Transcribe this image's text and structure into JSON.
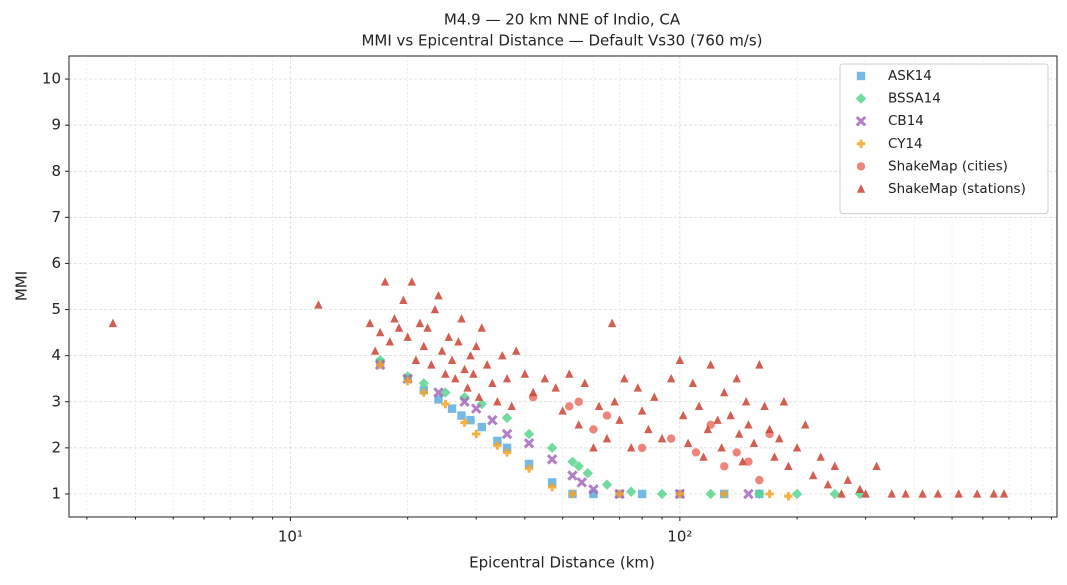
{
  "chart_data": {
    "type": "scatter",
    "title": "M4.9 — 20 km NNE of Indio, CA",
    "subtitle": "MMI vs Epicentral Distance — Default Vs30 (760 m/s)",
    "x_label": "Epicentral Distance (km)",
    "y_label": "MMI",
    "x_scale": "log",
    "xlim": [
      2.7,
      930
    ],
    "ylim": [
      0.5,
      10.5
    ],
    "xticks": [
      {
        "value": 10,
        "label": "10¹"
      },
      {
        "value": 100,
        "label": "10²"
      }
    ],
    "xminorticks": [
      3,
      4,
      5,
      6,
      7,
      8,
      9,
      20,
      30,
      40,
      50,
      60,
      70,
      80,
      90,
      200,
      300,
      400,
      500,
      600,
      700,
      800,
      900
    ],
    "yticks": [
      1,
      2,
      3,
      4,
      5,
      6,
      7,
      8,
      9,
      10
    ],
    "grid": true,
    "legend": "upper right",
    "series": [
      {
        "name": "ASK14",
        "color": "#5dade2",
        "marker": "square",
        "x": [
          17,
          20,
          22,
          24,
          26,
          27.5,
          29,
          31,
          34,
          36,
          41,
          47,
          53,
          60,
          70,
          80,
          100,
          130,
          160
        ],
        "values": [
          3.85,
          3.5,
          3.25,
          3.05,
          2.85,
          2.7,
          2.6,
          2.45,
          2.15,
          2.0,
          1.65,
          1.25,
          1.0,
          1.0,
          1.0,
          1.0,
          1.0,
          1.0,
          1.0
        ]
      },
      {
        "name": "BSSA14",
        "color": "#58d68d",
        "marker": "diamond",
        "x": [
          17,
          20,
          22,
          25,
          28,
          31,
          36,
          41,
          47,
          53,
          55,
          58,
          65,
          75,
          90,
          120,
          160,
          200,
          250,
          290
        ],
        "values": [
          3.9,
          3.55,
          3.4,
          3.2,
          3.1,
          2.95,
          2.65,
          2.3,
          2.0,
          1.7,
          1.6,
          1.45,
          1.2,
          1.05,
          1.0,
          1.0,
          1.0,
          1.0,
          1.0,
          1.0
        ]
      },
      {
        "name": "CB14",
        "color": "#a569bd",
        "marker": "x",
        "x": [
          17,
          20,
          24,
          28,
          30,
          33,
          36,
          41,
          47,
          53,
          56,
          60,
          70,
          100,
          150
        ],
        "values": [
          3.8,
          3.5,
          3.2,
          3.0,
          2.85,
          2.6,
          2.3,
          2.1,
          1.75,
          1.4,
          1.25,
          1.1,
          1.0,
          1.0,
          1.0
        ]
      },
      {
        "name": "CY14",
        "color": "#f5a623",
        "marker": "plus",
        "x": [
          17,
          20,
          22,
          25,
          28,
          30,
          34,
          36,
          41,
          47,
          53,
          70,
          100,
          130,
          170,
          190
        ],
        "values": [
          3.8,
          3.45,
          3.2,
          2.95,
          2.55,
          2.3,
          2.05,
          1.9,
          1.55,
          1.15,
          1.0,
          1.0,
          1.0,
          1.0,
          1.0,
          0.95
        ]
      },
      {
        "name": "ShakeMap (cities)",
        "color": "#ec7063",
        "marker": "circle",
        "x": [
          42,
          52,
          55,
          60,
          65,
          80,
          95,
          110,
          120,
          130,
          140,
          150,
          160,
          170
        ],
        "values": [
          3.1,
          2.9,
          3.0,
          2.4,
          2.7,
          2.0,
          2.2,
          1.9,
          2.5,
          1.6,
          1.9,
          1.7,
          1.3,
          2.3
        ]
      },
      {
        "name": "ShakeMap (stations)",
        "color": "#cb4335",
        "marker": "triangle",
        "x": [
          3.5,
          11.8,
          16,
          16.5,
          17,
          17.5,
          18,
          18.5,
          19,
          19.5,
          20,
          20.5,
          21,
          21.5,
          22,
          22.5,
          23,
          23.5,
          24,
          24.5,
          25,
          25.5,
          26,
          26.5,
          27,
          27.5,
          28,
          28.5,
          29,
          29.5,
          30,
          30.5,
          31,
          32,
          33,
          34,
          35,
          36,
          37,
          38,
          40,
          42,
          45,
          48,
          50,
          52,
          55,
          57,
          60,
          62,
          65,
          67,
          68,
          70,
          72,
          75,
          78,
          80,
          83,
          86,
          90,
          95,
          100,
          102,
          105,
          108,
          112,
          115,
          118,
          120,
          125,
          128,
          130,
          135,
          140,
          142,
          145,
          148,
          150,
          155,
          160,
          165,
          170,
          175,
          180,
          185,
          190,
          200,
          210,
          220,
          230,
          240,
          250,
          260,
          270,
          290,
          300,
          320,
          350,
          380,
          420,
          460,
          520,
          580,
          640,
          680
        ],
        "values": [
          4.7,
          5.1,
          4.7,
          4.1,
          4.5,
          5.6,
          4.3,
          4.8,
          4.6,
          5.2,
          4.4,
          5.6,
          3.9,
          4.7,
          4.2,
          4.6,
          3.8,
          5.0,
          5.3,
          4.1,
          3.6,
          4.4,
          3.9,
          3.5,
          4.3,
          4.8,
          3.7,
          3.3,
          4.0,
          3.6,
          4.2,
          3.1,
          4.6,
          3.8,
          3.4,
          3.0,
          4.0,
          3.5,
          2.9,
          4.1,
          3.6,
          3.2,
          3.5,
          3.3,
          2.8,
          3.6,
          2.5,
          3.4,
          2.0,
          2.9,
          2.2,
          4.7,
          3.0,
          2.6,
          3.5,
          2.0,
          3.3,
          2.8,
          2.4,
          3.1,
          2.2,
          3.5,
          3.9,
          2.7,
          2.1,
          3.4,
          2.9,
          1.8,
          2.4,
          3.8,
          2.6,
          2.0,
          3.2,
          2.7,
          3.5,
          2.3,
          1.7,
          3.0,
          2.5,
          2.1,
          3.8,
          2.9,
          2.4,
          1.8,
          2.2,
          3.0,
          1.6,
          2.0,
          2.5,
          1.4,
          1.8,
          1.2,
          1.6,
          1.0,
          1.3,
          1.1,
          1.0,
          1.6,
          1.0,
          1.0,
          1.0,
          1.0,
          1.0,
          1.0,
          1.0,
          1.0
        ]
      }
    ]
  }
}
